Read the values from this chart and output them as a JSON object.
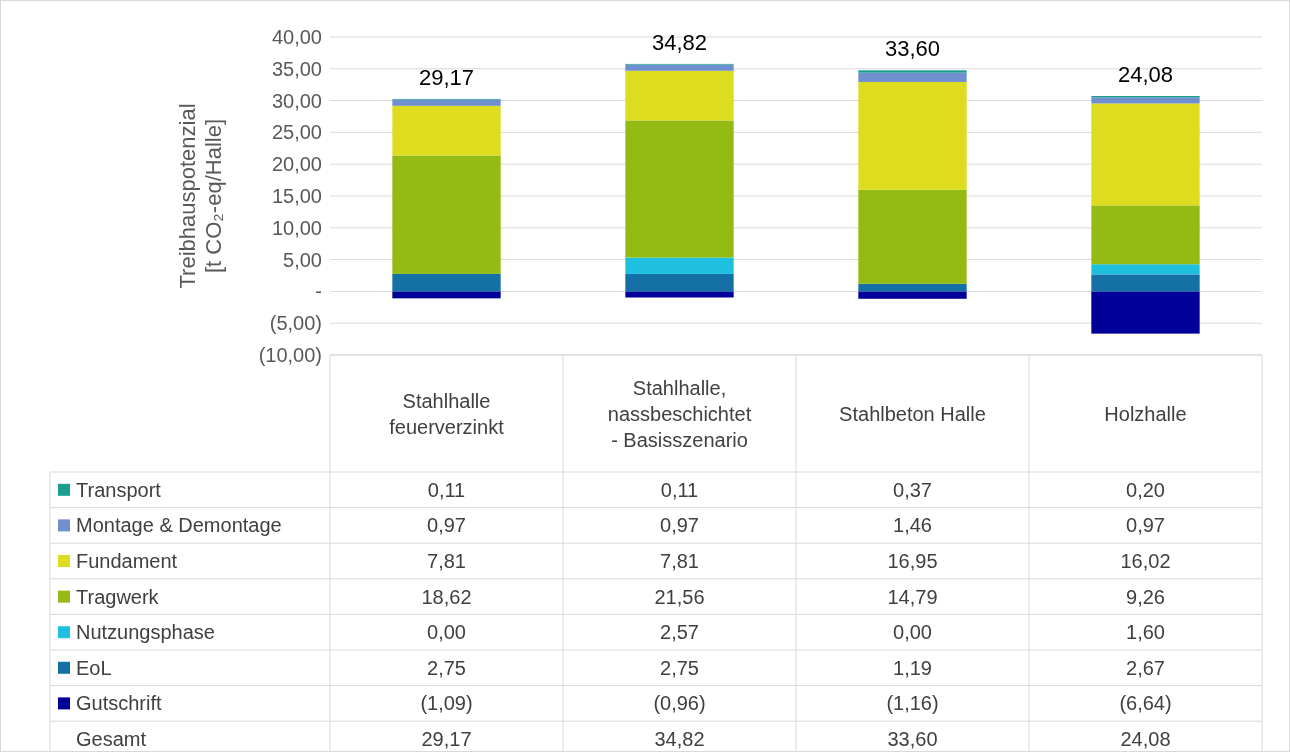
{
  "chart_data": {
    "type": "bar",
    "stacked": true,
    "ylabel": "Treibhauspotenzial\n[t CO₂-eq/Halle]",
    "categories": [
      "Stahlhalle feuerverzinkt",
      "Stahlhalle, nassbeschichtet - Basisszenario",
      "Stahlbeton Halle",
      "Holzhalle"
    ],
    "series": [
      {
        "name": "Gutschrift",
        "color": "#000099",
        "values": [
          -1.09,
          -0.96,
          -1.16,
          -6.64
        ],
        "value_labels": [
          "(1,09)",
          "(0,96)",
          "(1,16)",
          "(6,64)"
        ]
      },
      {
        "name": "EoL",
        "color": "#1570a6",
        "values": [
          2.75,
          2.75,
          1.19,
          2.67
        ],
        "value_labels": [
          "2,75",
          "2,75",
          "1,19",
          "2,67"
        ]
      },
      {
        "name": "Nutzungsphase",
        "color": "#1fbfe0",
        "values": [
          0,
          2.57,
          0,
          1.6
        ],
        "value_labels": [
          "0,00",
          "2,57",
          "0,00",
          "1,60"
        ]
      },
      {
        "name": "Tragwerk",
        "color": "#94bb14",
        "values": [
          18.62,
          21.56,
          14.79,
          9.26
        ],
        "value_labels": [
          "18,62",
          "21,56",
          "14,79",
          "9,26"
        ]
      },
      {
        "name": "Fundament",
        "color": "#dedc1f",
        "values": [
          7.81,
          7.81,
          16.95,
          16.02
        ],
        "value_labels": [
          "7,81",
          "7,81",
          "16,95",
          "16,02"
        ]
      },
      {
        "name": "Montage & Demontage",
        "color": "#6f8fcf",
        "values": [
          0.97,
          0.97,
          1.46,
          0.97
        ],
        "value_labels": [
          "0,97",
          "0,97",
          "1,46",
          "0,97"
        ]
      },
      {
        "name": "Transport",
        "color": "#1a9e8f",
        "values": [
          0.11,
          0.11,
          0.37,
          0.2
        ],
        "value_labels": [
          "0,11",
          "0,11",
          "0,37",
          "0,20"
        ]
      }
    ],
    "annotations": [
      "Gesamt"
    ],
    "totals": [
      "29,17",
      "34,82",
      "33,60",
      "24,08"
    ],
    "ylim": [
      -10,
      40
    ],
    "yticks": [
      {
        "value": 40,
        "label": "40,00"
      },
      {
        "value": 35,
        "label": "35,00"
      },
      {
        "value": 30,
        "label": "30,00"
      },
      {
        "value": 25,
        "label": "25,00"
      },
      {
        "value": 20,
        "label": "20,00"
      },
      {
        "value": 15,
        "label": "15,00"
      },
      {
        "value": 10,
        "label": "10,00"
      },
      {
        "value": 5,
        "label": "5,00"
      },
      {
        "value": 0,
        "label": "-"
      },
      {
        "value": -5,
        "label": "(5,00)"
      },
      {
        "value": -10,
        "label": "(10,00)"
      }
    ],
    "grid": "y",
    "legend": "bottom"
  }
}
